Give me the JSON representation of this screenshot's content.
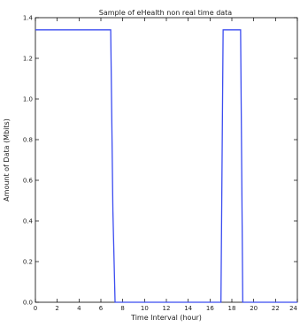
{
  "chart_data": {
    "type": "line",
    "title": "Sample of eHealth non real time data",
    "xlabel": "Time Interval (hour)",
    "ylabel": "Amount of Data (Mbits)",
    "xlim": [
      0,
      24
    ],
    "ylim": [
      0,
      1.4
    ],
    "xticks": [
      "0",
      "2",
      "4",
      "6",
      "8",
      "10",
      "12",
      "14",
      "16",
      "18",
      "20",
      "22",
      "24"
    ],
    "yticks": [
      "0.0",
      "0.2",
      "0.4",
      "0.6",
      "0.8",
      "1.0",
      "1.2",
      "1.4"
    ],
    "grid": false,
    "series": [
      {
        "color": "#3b4cf0",
        "x": [
          0,
          6.9,
          7.1,
          7.3,
          17.0,
          17.2,
          18.8,
          19.0,
          24
        ],
        "y": [
          1.34,
          1.34,
          0.45,
          0.0,
          0.0,
          1.34,
          1.34,
          0.0,
          0.0
        ]
      }
    ]
  }
}
